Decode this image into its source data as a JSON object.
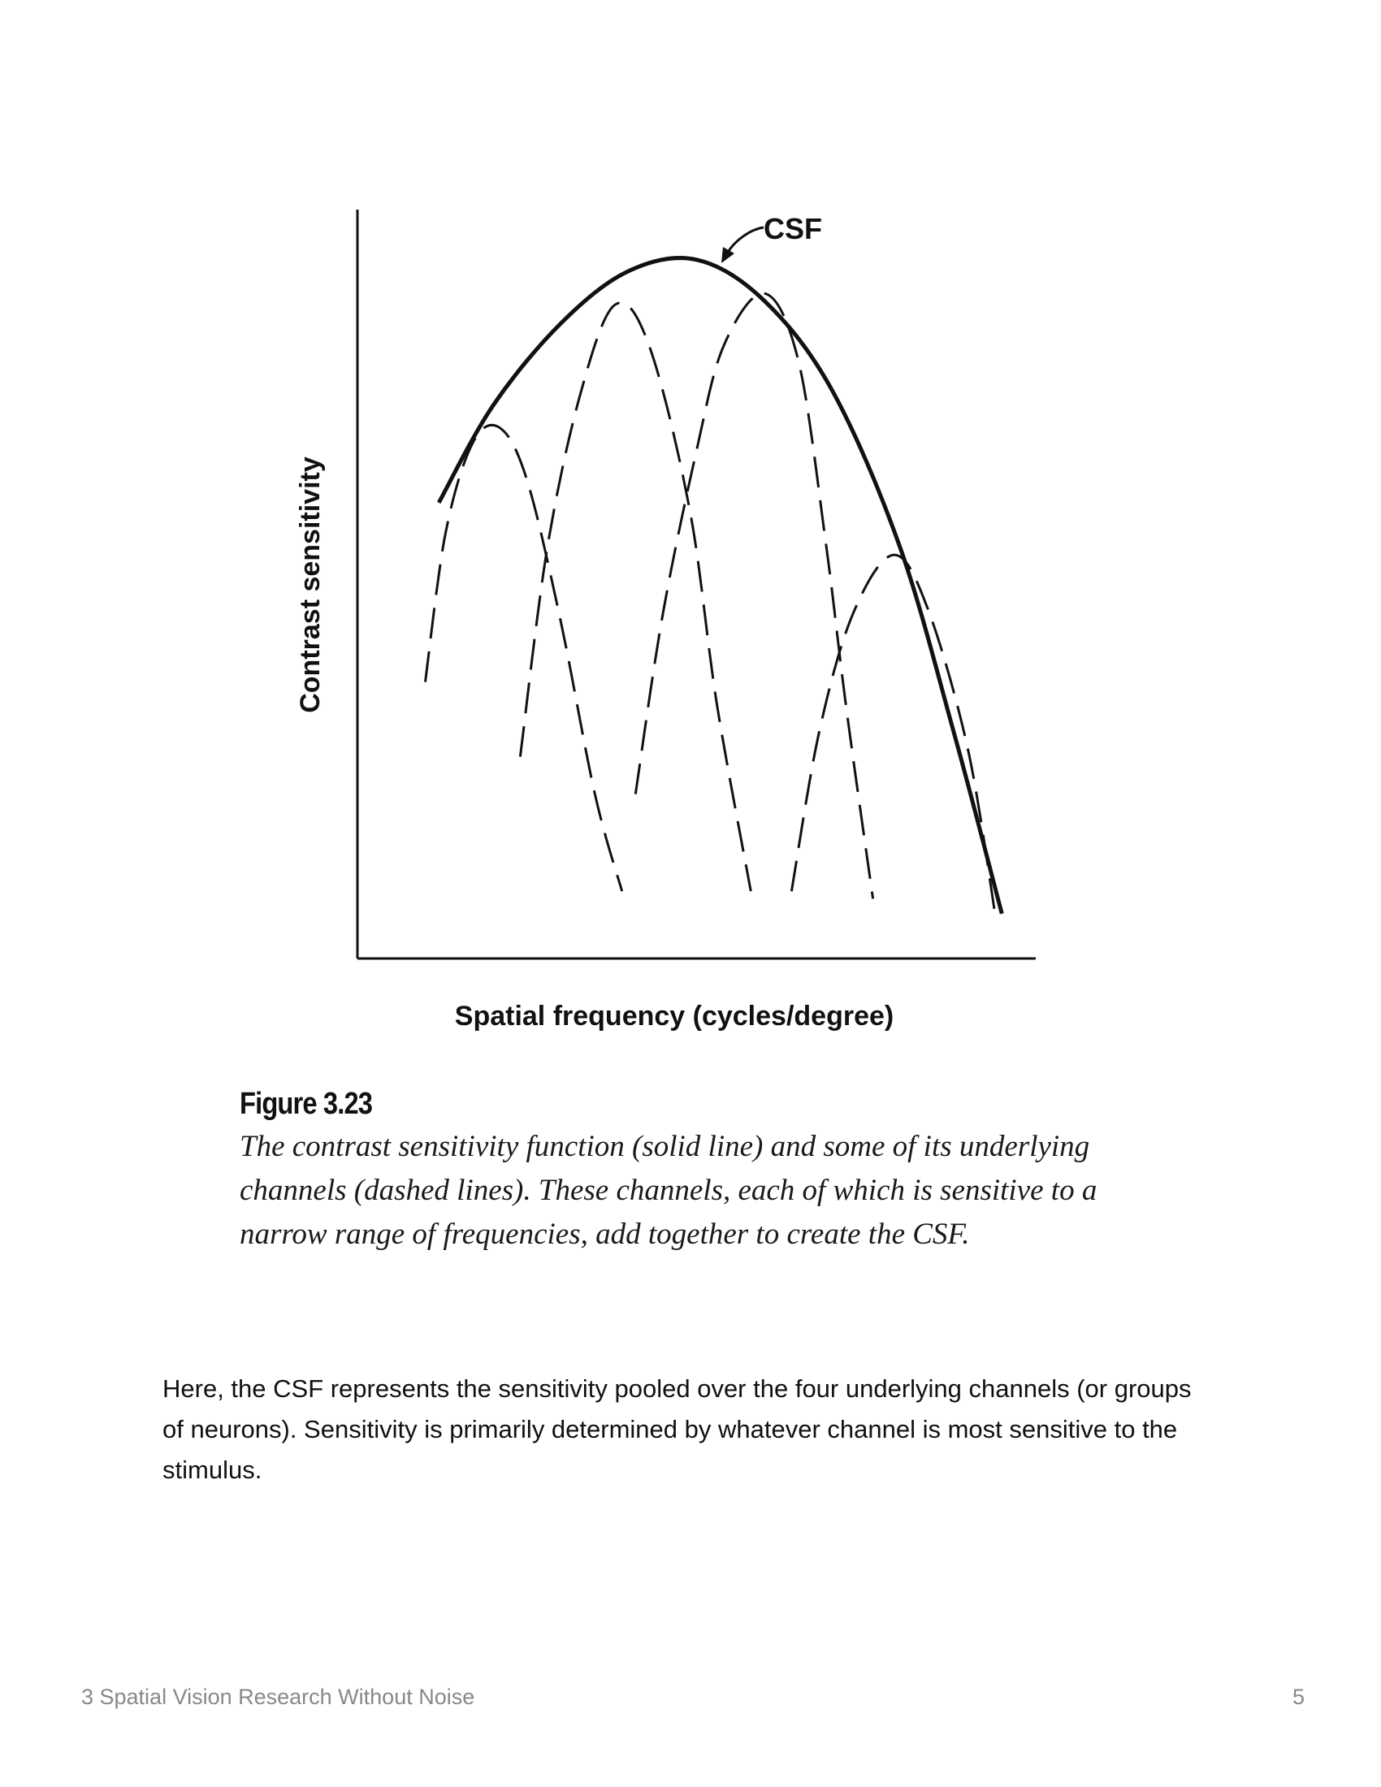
{
  "figure": {
    "annotation": "CSF",
    "ylabel": "Contrast sensitivity",
    "xlabel": "Spatial frequency (cycles/degree)"
  },
  "chart_data": {
    "type": "line",
    "title": "",
    "xlabel": "Spatial frequency (cycles/degree)",
    "ylabel": "Contrast sensitivity",
    "annotations": [
      "CSF"
    ],
    "grid": false,
    "legend": "none",
    "series": [
      {
        "name": "CSF",
        "style": "solid",
        "points": [
          [
            0.12,
            0.61
          ],
          [
            0.2,
            0.74
          ],
          [
            0.3,
            0.85
          ],
          [
            0.4,
            0.92
          ],
          [
            0.5,
            0.935
          ],
          [
            0.6,
            0.88
          ],
          [
            0.7,
            0.76
          ],
          [
            0.8,
            0.55
          ],
          [
            0.88,
            0.3
          ],
          [
            0.95,
            0.06
          ]
        ]
      },
      {
        "style": "dashed",
        "points": [
          [
            0.1,
            0.37
          ],
          [
            0.13,
            0.57
          ],
          [
            0.17,
            0.69
          ],
          [
            0.21,
            0.71
          ],
          [
            0.25,
            0.64
          ],
          [
            0.3,
            0.45
          ],
          [
            0.35,
            0.22
          ],
          [
            0.39,
            0.09
          ]
        ]
      },
      {
        "style": "dashed",
        "points": [
          [
            0.24,
            0.27
          ],
          [
            0.28,
            0.55
          ],
          [
            0.33,
            0.76
          ],
          [
            0.38,
            0.875
          ],
          [
            0.43,
            0.82
          ],
          [
            0.49,
            0.6
          ],
          [
            0.53,
            0.34
          ],
          [
            0.58,
            0.09
          ]
        ]
      },
      {
        "style": "dashed",
        "points": [
          [
            0.41,
            0.22
          ],
          [
            0.45,
            0.46
          ],
          [
            0.5,
            0.68
          ],
          [
            0.54,
            0.82
          ],
          [
            0.6,
            0.89
          ],
          [
            0.65,
            0.8
          ],
          [
            0.69,
            0.56
          ],
          [
            0.72,
            0.34
          ],
          [
            0.76,
            0.08
          ]
        ]
      },
      {
        "style": "dashed",
        "points": [
          [
            0.64,
            0.09
          ],
          [
            0.68,
            0.3
          ],
          [
            0.73,
            0.46
          ],
          [
            0.79,
            0.54
          ],
          [
            0.84,
            0.47
          ],
          [
            0.9,
            0.28
          ],
          [
            0.94,
            0.06
          ]
        ]
      }
    ]
  },
  "caption": {
    "title": "Figure 3.23",
    "text": "The contrast sensitivity function (solid line) and some of its underlying channels (dashed lines). These channels, each of which is sensitive to a narrow range of frequencies, add together to create the CSF."
  },
  "body": {
    "paragraph": "Here, the CSF represents the sensitivity pooled over the four underlying channels (or groups of neurons).  Sensitivity is primarily determined by whatever channel is most sensitive to the stimulus."
  },
  "footer": {
    "left": "3 Spatial Vision Research Without Noise",
    "right": "5"
  }
}
